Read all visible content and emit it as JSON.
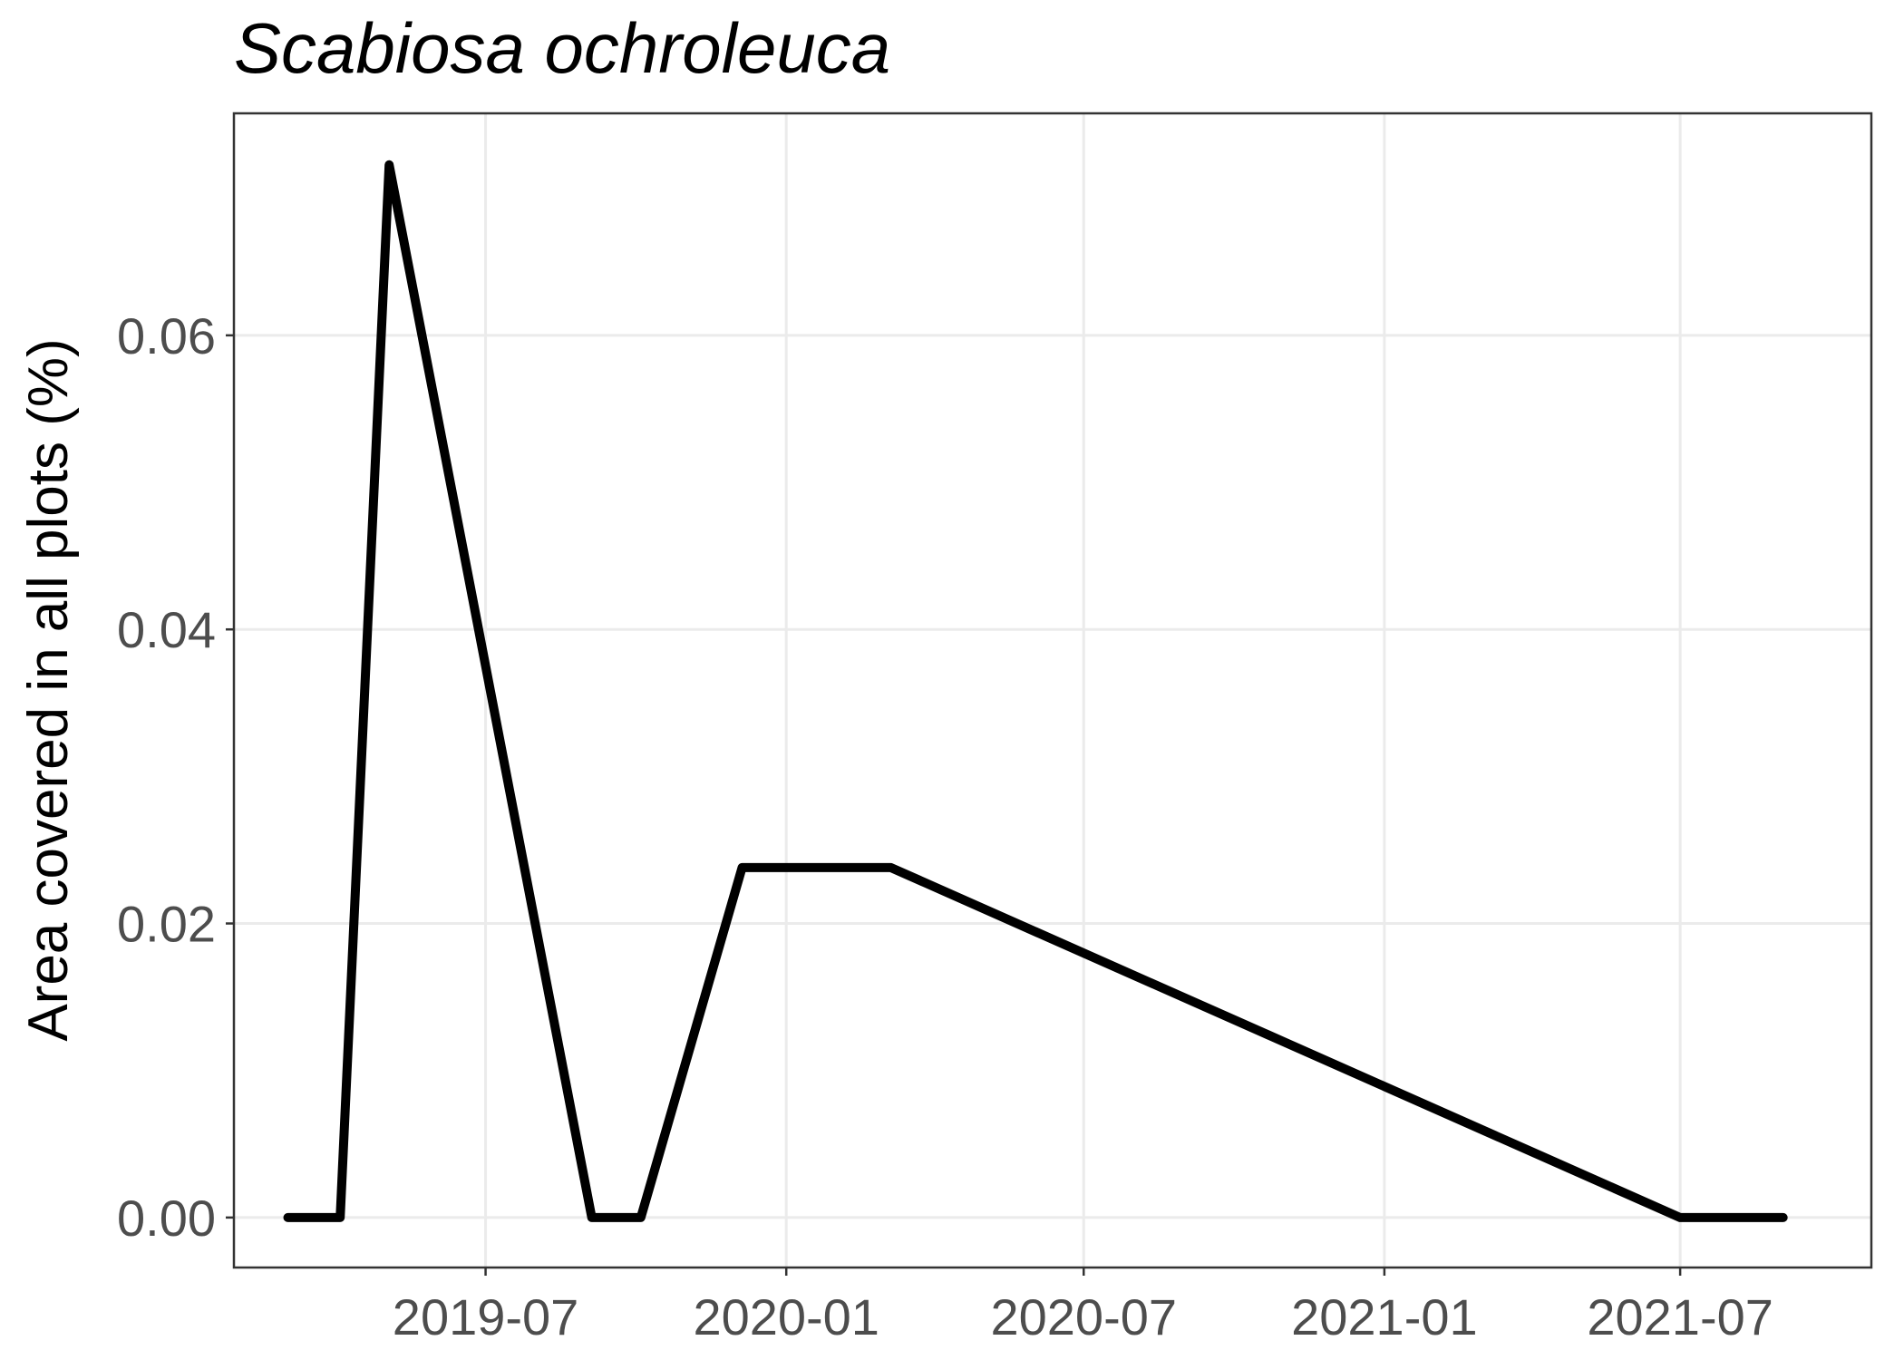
{
  "chart_data": {
    "type": "line",
    "title": "Scabiosa ochroleuca",
    "xlabel": "",
    "ylabel": "Area covered in all plots (%)",
    "x_tick_labels": [
      "2019-07",
      "2020-01",
      "2020-07",
      "2021-01",
      "2021-07"
    ],
    "x_tick_dates": [
      "2019-07-01",
      "2020-01-01",
      "2020-07-01",
      "2021-01-01",
      "2021-07-01"
    ],
    "y_tick_labels": [
      "0.00",
      "0.02",
      "0.04",
      "0.06"
    ],
    "y_ticks": [
      0,
      0.02,
      0.04,
      0.06
    ],
    "xlim": [
      "2019-01-28",
      "2021-10-26"
    ],
    "ylim": [
      -0.0034,
      0.0751
    ],
    "grid": true,
    "series": [
      {
        "color": "#000000",
        "x": [
          "2019-03-02",
          "2019-04-03",
          "2019-05-03",
          "2019-09-04",
          "2019-10-04",
          "2019-12-05",
          "2020-03-05",
          "2021-07-01",
          "2021-09-02"
        ],
        "y": [
          0.0,
          0.0,
          0.0716,
          0.0,
          0.0,
          0.0238,
          0.0238,
          0.0,
          0.0
        ]
      }
    ]
  }
}
